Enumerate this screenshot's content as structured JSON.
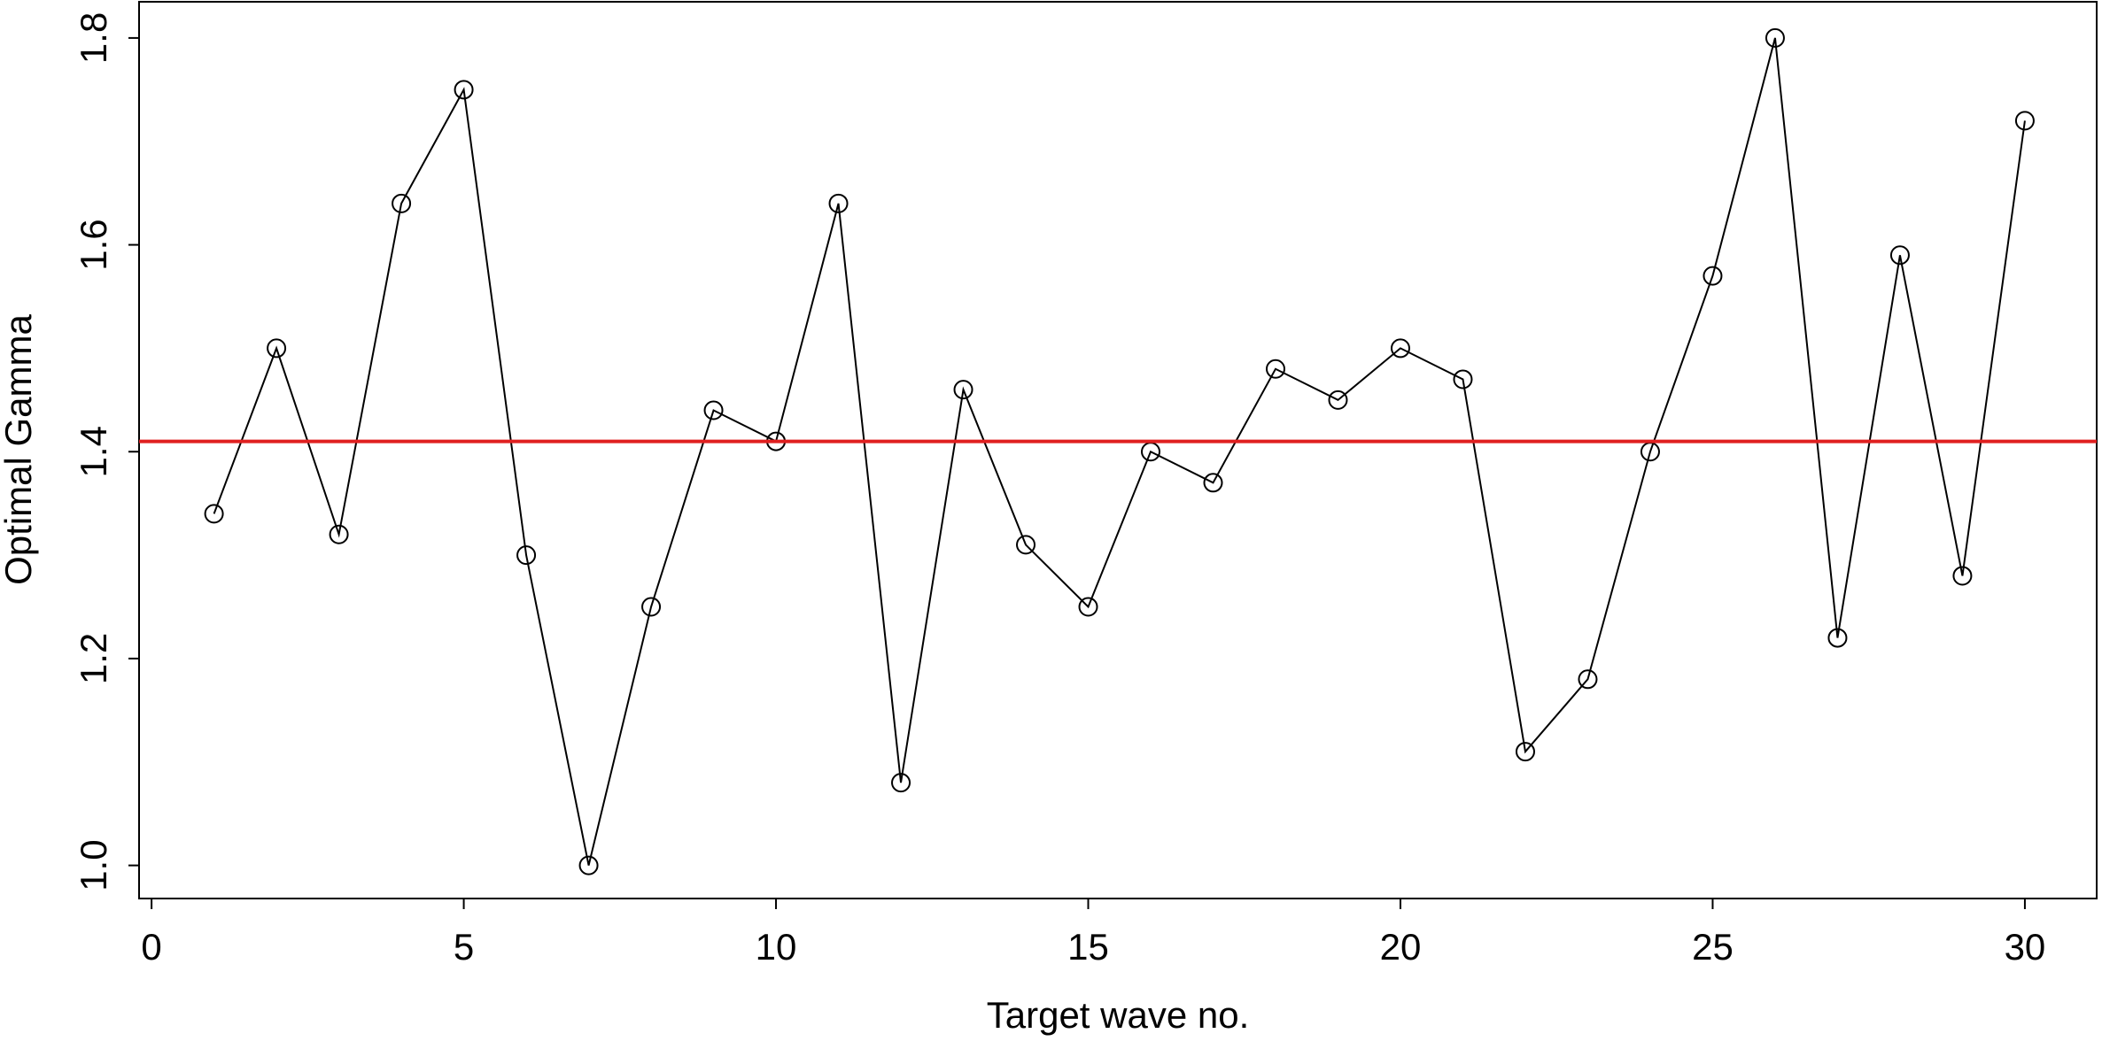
{
  "chart_data": {
    "type": "line",
    "x_label": "Target wave no.",
    "y_label": "Optimal Gamma",
    "x": [
      1,
      2,
      3,
      4,
      5,
      6,
      7,
      8,
      9,
      10,
      11,
      12,
      13,
      14,
      15,
      16,
      17,
      18,
      19,
      20,
      21,
      22,
      23,
      24,
      25,
      26,
      27,
      28,
      29,
      30
    ],
    "values": [
      1.34,
      1.5,
      1.32,
      1.64,
      1.75,
      1.3,
      1.0,
      1.25,
      1.44,
      1.41,
      1.64,
      1.08,
      1.46,
      1.31,
      1.25,
      1.4,
      1.37,
      1.48,
      1.45,
      1.5,
      1.47,
      1.11,
      1.18,
      1.4,
      1.57,
      1.8,
      1.22,
      1.59,
      1.28,
      1.72
    ],
    "color": "#000000",
    "reference_line": {
      "value": 1.41,
      "color": "#e02020"
    },
    "xlim": [
      -0.2,
      31.15
    ],
    "ylim": [
      0.968,
      1.835
    ],
    "xticks": [
      0,
      5,
      10,
      15,
      20,
      25,
      30
    ],
    "yticks": [
      {
        "value": 1.0,
        "label": "1.0"
      },
      1.2,
      1.4,
      1.6,
      1.8
    ]
  }
}
